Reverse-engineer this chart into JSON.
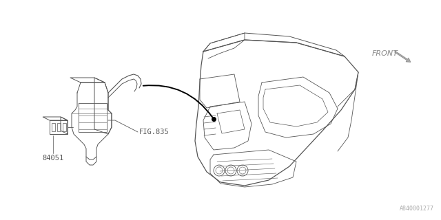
{
  "background_color": "#ffffff",
  "line_color": "#555555",
  "label_84051": "84051",
  "label_fig835": "FIG.835",
  "label_front": "FRONT",
  "label_part_number": "A840001277",
  "fig_width": 6.4,
  "fig_height": 3.2,
  "dpi": 100
}
